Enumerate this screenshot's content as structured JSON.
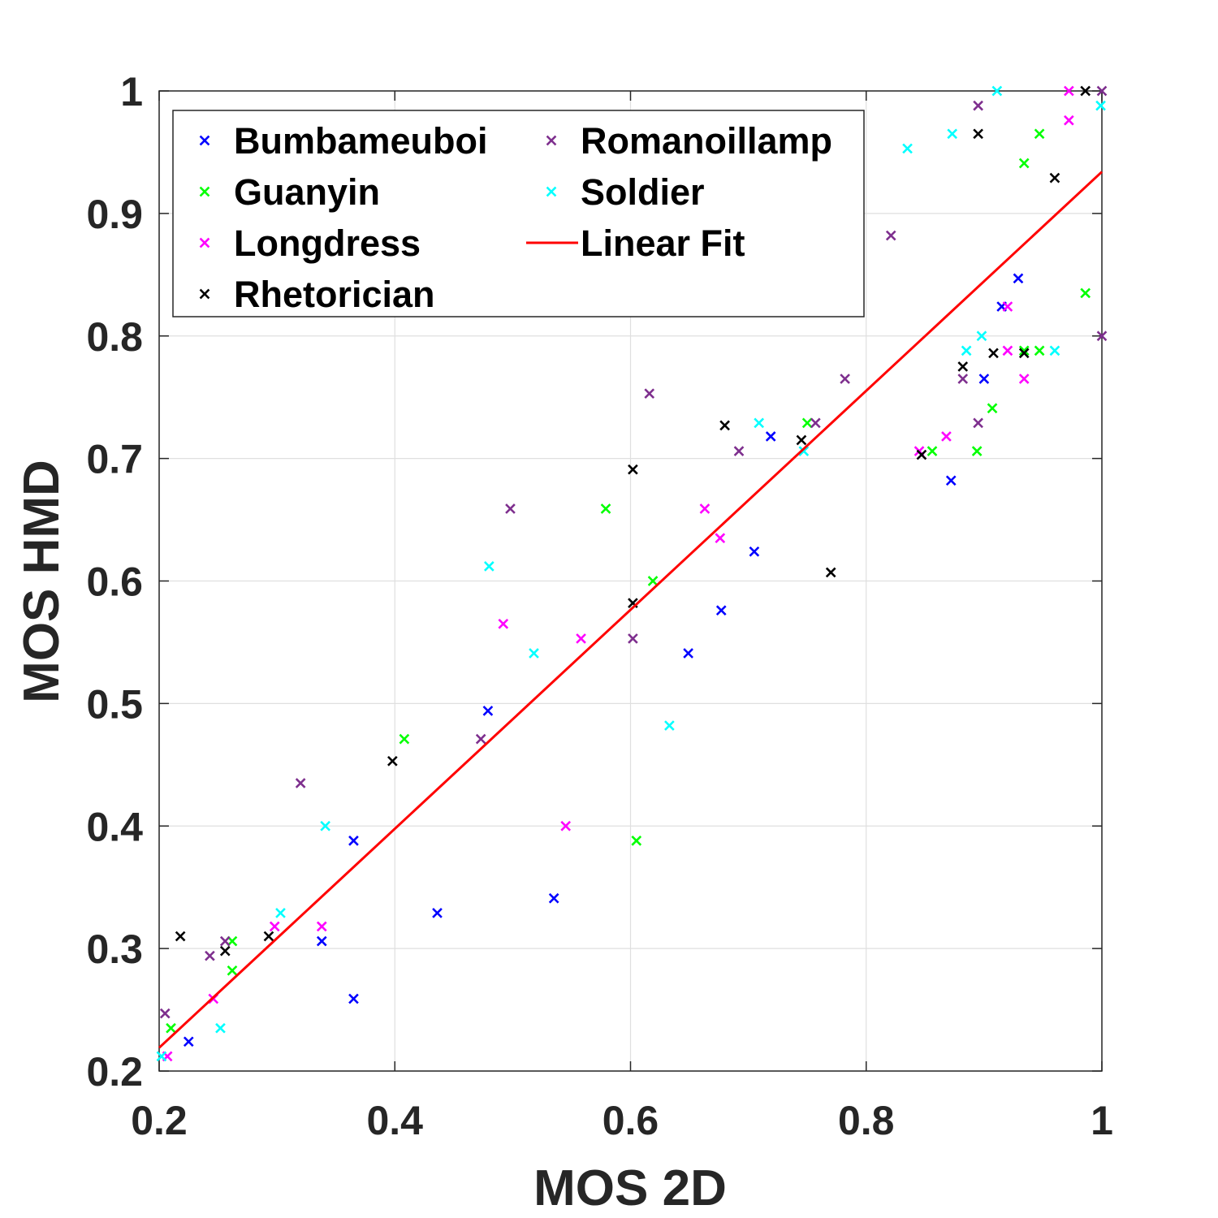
{
  "chart_data": {
    "type": "scatter",
    "title": "",
    "xlabel": "MOS 2D",
    "ylabel": "MOS HMD",
    "xlim": [
      0.2,
      1.0
    ],
    "ylim": [
      0.2,
      1.0
    ],
    "xticks": [
      "0.2",
      "0.4",
      "0.6",
      "0.8",
      "1"
    ],
    "yticks": [
      "0.2",
      "0.3",
      "0.4",
      "0.5",
      "0.6",
      "0.7",
      "0.8",
      "0.9",
      "1"
    ],
    "xtick_values": [
      0.2,
      0.4,
      0.6,
      0.8,
      1.0
    ],
    "ytick_values": [
      0.2,
      0.3,
      0.4,
      0.5,
      0.6,
      0.7,
      0.8,
      0.9,
      1.0
    ],
    "grid": true,
    "legend_position": "top-left",
    "series": [
      {
        "name": "Bumbameuboi",
        "color": "#0000ff",
        "marker": "x",
        "x": [
          0.225,
          0.338,
          0.365,
          0.365,
          0.436,
          0.535,
          0.479,
          0.649,
          0.677,
          0.705,
          0.719,
          0.872,
          0.9,
          0.915,
          0.929
        ],
        "y": [
          0.224,
          0.306,
          0.259,
          0.388,
          0.329,
          0.341,
          0.494,
          0.541,
          0.576,
          0.624,
          0.718,
          0.682,
          0.765,
          0.824,
          0.847
        ]
      },
      {
        "name": "Guanyin",
        "color": "#00ff00",
        "marker": "x",
        "x": [
          0.21,
          0.262,
          0.262,
          0.408,
          0.605,
          0.579,
          0.619,
          0.75,
          0.856,
          0.894,
          0.907,
          0.934,
          0.934,
          0.947,
          0.947,
          0.986
        ],
        "y": [
          0.235,
          0.282,
          0.306,
          0.471,
          0.388,
          0.659,
          0.6,
          0.729,
          0.706,
          0.706,
          0.741,
          0.788,
          0.941,
          0.788,
          0.965,
          0.835
        ]
      },
      {
        "name": "Longdress",
        "color": "#ff00ff",
        "marker": "x",
        "x": [
          0.207,
          0.246,
          0.298,
          0.338,
          0.492,
          0.545,
          0.558,
          0.663,
          0.676,
          0.845,
          0.868,
          0.92,
          0.92,
          0.934,
          0.972,
          0.972
        ],
        "y": [
          0.212,
          0.259,
          0.318,
          0.318,
          0.565,
          0.4,
          0.553,
          0.659,
          0.635,
          0.706,
          0.718,
          0.788,
          0.824,
          0.765,
          0.976,
          1.0
        ]
      },
      {
        "name": "Rhetorician",
        "color": "#000000",
        "marker": "x",
        "x": [
          0.218,
          0.256,
          0.293,
          0.398,
          0.602,
          0.602,
          0.68,
          0.745,
          0.77,
          0.847,
          0.882,
          0.895,
          0.908,
          0.934,
          0.96,
          0.986
        ],
        "y": [
          0.31,
          0.298,
          0.31,
          0.453,
          0.582,
          0.691,
          0.727,
          0.715,
          0.607,
          0.703,
          0.775,
          0.965,
          0.786,
          0.786,
          0.929,
          1.0
        ]
      },
      {
        "name": "Romanoillamp",
        "color": "#7e2f8e",
        "marker": "x",
        "x": [
          0.205,
          0.243,
          0.256,
          0.32,
          0.473,
          0.498,
          0.602,
          0.616,
          0.692,
          0.757,
          0.782,
          0.821,
          0.882,
          0.895,
          0.895,
          1.0,
          1.0
        ],
        "y": [
          0.247,
          0.294,
          0.306,
          0.435,
          0.471,
          0.659,
          0.553,
          0.753,
          0.706,
          0.729,
          0.765,
          0.882,
          0.765,
          0.729,
          0.988,
          0.8,
          1.0
        ]
      },
      {
        "name": "Soldier",
        "color": "#00ffff",
        "marker": "x",
        "x": [
          0.202,
          0.252,
          0.303,
          0.341,
          0.48,
          0.518,
          0.633,
          0.709,
          0.747,
          0.835,
          0.873,
          0.885,
          0.898,
          0.911,
          0.96,
          0.999
        ],
        "y": [
          0.212,
          0.235,
          0.329,
          0.4,
          0.612,
          0.541,
          0.482,
          0.729,
          0.706,
          0.953,
          0.965,
          0.788,
          0.8,
          1.0,
          0.788,
          0.988
        ]
      }
    ],
    "fit": {
      "name": "Linear Fit",
      "color": "#ff0000",
      "x": [
        0.2,
        1.0
      ],
      "y": [
        0.219,
        0.934
      ]
    }
  }
}
